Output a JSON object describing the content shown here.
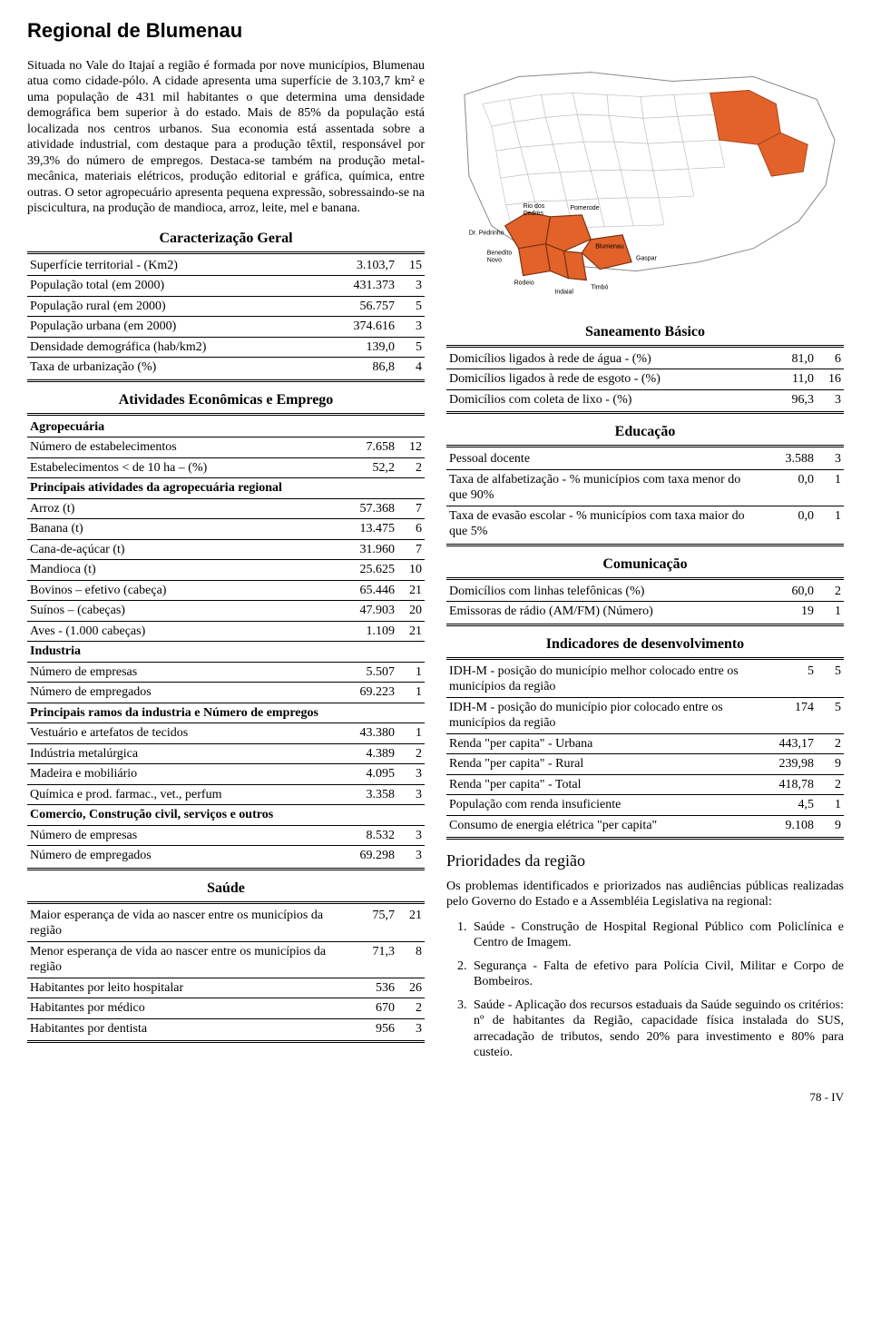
{
  "title": "Regional de Blumenau",
  "intro": "Situada no Vale do Itajaí a região é formada por nove municípios, Blumenau atua como cidade-pólo. A cidade apresenta uma superfície de 3.103,7 km² e uma população de 431 mil habitantes o que determina uma densidade demográfica bem superior à do estado. Mais de 85% da população está localizada nos centros urbanos. Sua economia está assentada sobre a atividade industrial, com destaque para a produção têxtil, responsável por 39,3% do número de empregos. Destaca-se também na produção metal-mecânica, materiais elétricos, produção editorial e gráfica, química, entre outras. O setor agropecuário apresenta pequena expressão, sobressaindo-se na piscicultura, na produção de mandioca, arroz, leite, mel e banana.",
  "sections": {
    "caract": {
      "title": "Caracterização Geral",
      "rows": [
        {
          "l": "Superfície territorial - (Km2)",
          "v1": "3.103,7",
          "v2": "15"
        },
        {
          "l": "População total (em 2000)",
          "v1": "431.373",
          "v2": "3"
        },
        {
          "l": "População rural (em 2000)",
          "v1": "56.757",
          "v2": "5"
        },
        {
          "l": "População urbana (em 2000)",
          "v1": "374.616",
          "v2": "3"
        },
        {
          "l": "Densidade demográfica (hab/km2)",
          "v1": "139,0",
          "v2": "5"
        },
        {
          "l": "Taxa de urbanização (%)",
          "v1": "86,8",
          "v2": "4"
        }
      ]
    },
    "ativ": {
      "title": "Atividades Econômicas e Emprego",
      "groups": [
        {
          "sub": "Agropecuária",
          "rows": [
            {
              "l": "Número de estabelecimentos",
              "v1": "7.658",
              "v2": "12"
            },
            {
              "l": "Estabelecimentos < de 10 ha – (%)",
              "v1": "52,2",
              "v2": "2"
            }
          ]
        },
        {
          "sub": "Principais atividades da agropecuária regional",
          "rows": [
            {
              "l": "Arroz (t)",
              "v1": "57.368",
              "v2": "7"
            },
            {
              "l": "Banana (t)",
              "v1": "13.475",
              "v2": "6"
            },
            {
              "l": "Cana-de-açúcar (t)",
              "v1": "31.960",
              "v2": "7"
            },
            {
              "l": "Mandioca (t)",
              "v1": "25.625",
              "v2": "10"
            },
            {
              "l": "Bovinos – efetivo (cabeça)",
              "v1": "65.446",
              "v2": "21"
            },
            {
              "l": "Suínos – (cabeças)",
              "v1": "47.903",
              "v2": "20"
            },
            {
              "l": "Aves - (1.000 cabeças)",
              "v1": "1.109",
              "v2": "21"
            }
          ]
        },
        {
          "sub": "Industria",
          "rows": [
            {
              "l": "Número de empresas",
              "v1": "5.507",
              "v2": "1"
            },
            {
              "l": "Número de empregados",
              "v1": "69.223",
              "v2": "1"
            }
          ]
        },
        {
          "sub": "Principais ramos da industria e Número de empregos",
          "rows": [
            {
              "l": "Vestuário e artefatos de tecidos",
              "v1": "43.380",
              "v2": "1"
            },
            {
              "l": "Indústria metalúrgica",
              "v1": "4.389",
              "v2": "2"
            },
            {
              "l": "Madeira e mobiliário",
              "v1": "4.095",
              "v2": "3"
            },
            {
              "l": "Química e prod. farmac., vet., perfum",
              "v1": "3.358",
              "v2": "3"
            }
          ]
        },
        {
          "sub": "Comercio, Construção civil, serviços e outros",
          "rows": [
            {
              "l": "Número de empresas",
              "v1": "8.532",
              "v2": "3"
            },
            {
              "l": "Número de empregados",
              "v1": "69.298",
              "v2": "3"
            }
          ]
        }
      ]
    },
    "saude": {
      "title": "Saúde",
      "rows": [
        {
          "l": "Maior esperança de vida ao nascer entre os municípios da região",
          "v1": "75,7",
          "v2": "21"
        },
        {
          "l": "Menor esperança de vida ao nascer entre os municípios da região",
          "v1": "71,3",
          "v2": "8"
        },
        {
          "l": "Habitantes por leito hospitalar",
          "v1": "536",
          "v2": "26"
        },
        {
          "l": "Habitantes por médico",
          "v1": "670",
          "v2": "2"
        },
        {
          "l": "Habitantes por dentista",
          "v1": "956",
          "v2": "3"
        }
      ]
    },
    "sane": {
      "title": "Saneamento Básico",
      "rows": [
        {
          "l": "Domicílios ligados à rede de água - (%)",
          "v1": "81,0",
          "v2": "6"
        },
        {
          "l": "Domicílios ligados à rede de esgoto - (%)",
          "v1": "11,0",
          "v2": "16"
        },
        {
          "l": "Domicílios com coleta de lixo - (%)",
          "v1": "96,3",
          "v2": "3"
        }
      ]
    },
    "educ": {
      "title": "Educação",
      "rows": [
        {
          "l": "Pessoal docente",
          "v1": "3.588",
          "v2": "3"
        },
        {
          "l": "Taxa de alfabetização - % municípios com taxa menor do que 90%",
          "v1": "0,0",
          "v2": "1"
        },
        {
          "l": "Taxa de evasão escolar - % municípios com taxa maior do que 5%",
          "v1": "0,0",
          "v2": "1"
        }
      ]
    },
    "comu": {
      "title": "Comunicação",
      "rows": [
        {
          "l": "Domicílios com linhas telefônicas (%)",
          "v1": "60,0",
          "v2": "2"
        },
        {
          "l": "Emissoras de rádio (AM/FM) (Número)",
          "v1": "19",
          "v2": "1"
        }
      ]
    },
    "indic": {
      "title": "Indicadores de desenvolvimento",
      "rows": [
        {
          "l": "IDH-M - posição do município melhor colocado entre os municípios da região",
          "v1": "5",
          "v2": "5"
        },
        {
          "l": "IDH-M - posição do município pior colocado entre os municípios da região",
          "v1": "174",
          "v2": "5"
        },
        {
          "l": "Renda \"per capita\" - Urbana",
          "v1": "443,17",
          "v2": "2"
        },
        {
          "l": "Renda \"per capita\" - Rural",
          "v1": "239,98",
          "v2": "9"
        },
        {
          "l": "Renda \"per capita\" - Total",
          "v1": "418,78",
          "v2": "2"
        },
        {
          "l": "População com renda insuficiente",
          "v1": "4,5",
          "v2": "1"
        },
        {
          "l": "Consumo de energia elétrica \"per capita\"",
          "v1": "9.108",
          "v2": "9"
        }
      ]
    }
  },
  "map": {
    "labels": [
      "Rio dos Cedros",
      "Pomerode",
      "Dr. Pedrinho",
      "Blumenau",
      "Benedito Novo",
      "Gaspar",
      "Rodeio",
      "Indaial",
      "Timbó"
    ],
    "highlight_fill": "#e2622a",
    "outline": "#888888",
    "inset_outline": "#666666"
  },
  "prioridades": {
    "title": "Prioridades da região",
    "intro": "Os problemas identificados e priorizados nas audiências públicas realizadas pelo Governo do Estado e a Assembléia Legislativa na regional:",
    "items": [
      "Saúde - Construção de Hospital Regional Público com Policlínica e Centro de Imagem.",
      "Segurança - Falta de efetivo para Polícia Civil, Militar e Corpo de Bombeiros.",
      "Saúde - Aplicação dos recursos estaduais da Saúde seguindo os critérios: nº de habitantes da Região, capacidade física instalada do SUS, arrecadação de tributos, sendo 20% para investimento e 80% para custeio."
    ]
  },
  "page_footer": "78 - IV"
}
